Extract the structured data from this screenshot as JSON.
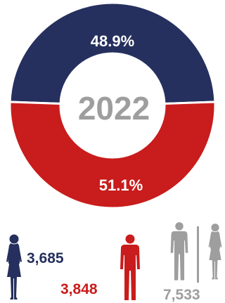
{
  "colors": {
    "female": "#26305e",
    "male": "#c91c1c",
    "total": "#9e9e9e",
    "center_text": "#9e9e9e",
    "slice_label": "#ffffff"
  },
  "chart_data": {
    "type": "pie",
    "title": "",
    "center_label": "2022",
    "slices": [
      {
        "label": "48.9%",
        "value": 48.9,
        "color": "#26305e"
      },
      {
        "label": "51.1%",
        "value": 51.1,
        "color": "#c91c1c"
      }
    ]
  },
  "counts": {
    "female": "3,685",
    "male": "3,848",
    "total": "7,533"
  },
  "icons": [
    "female-figure-icon",
    "male-figure-icon",
    "male-figure-icon",
    "female-figure-icon"
  ]
}
